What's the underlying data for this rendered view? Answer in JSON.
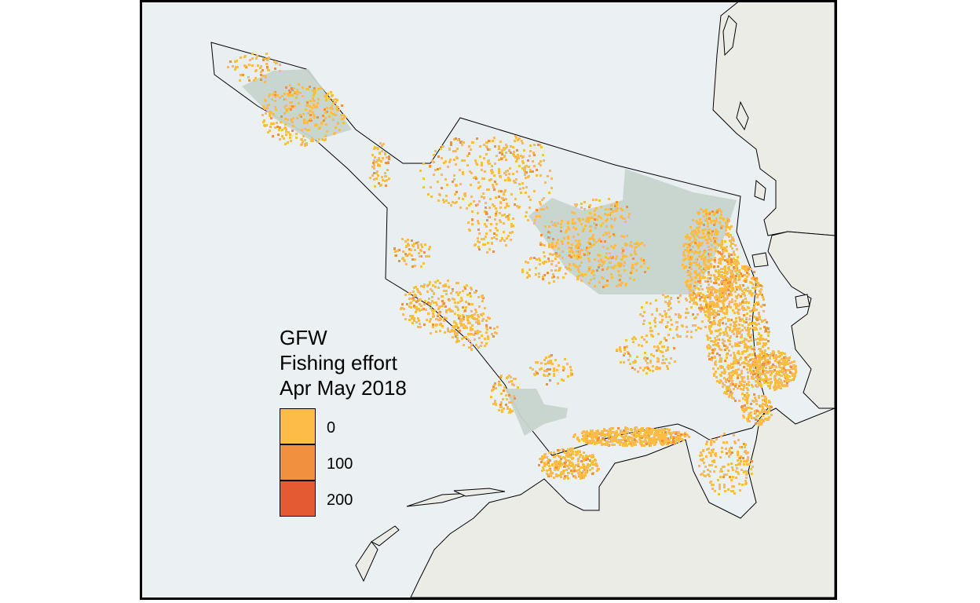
{
  "legend": {
    "title_line1": "GFW",
    "title_line2": "Fishing effort",
    "title_line3": "Apr May 2018",
    "breaks": [
      {
        "label": "0",
        "color": "#fdbb47"
      },
      {
        "label": "100",
        "color": "#f1913f"
      },
      {
        "label": "200",
        "color": "#e35a33"
      }
    ]
  },
  "colors": {
    "sea": "#ebf0f3",
    "land": "#ededE8",
    "study_area": "#e9eef1",
    "protected_area": "#c7d3cc",
    "effort_low": "#fdbb47",
    "effort_mid": "#f1913f"
  }
}
